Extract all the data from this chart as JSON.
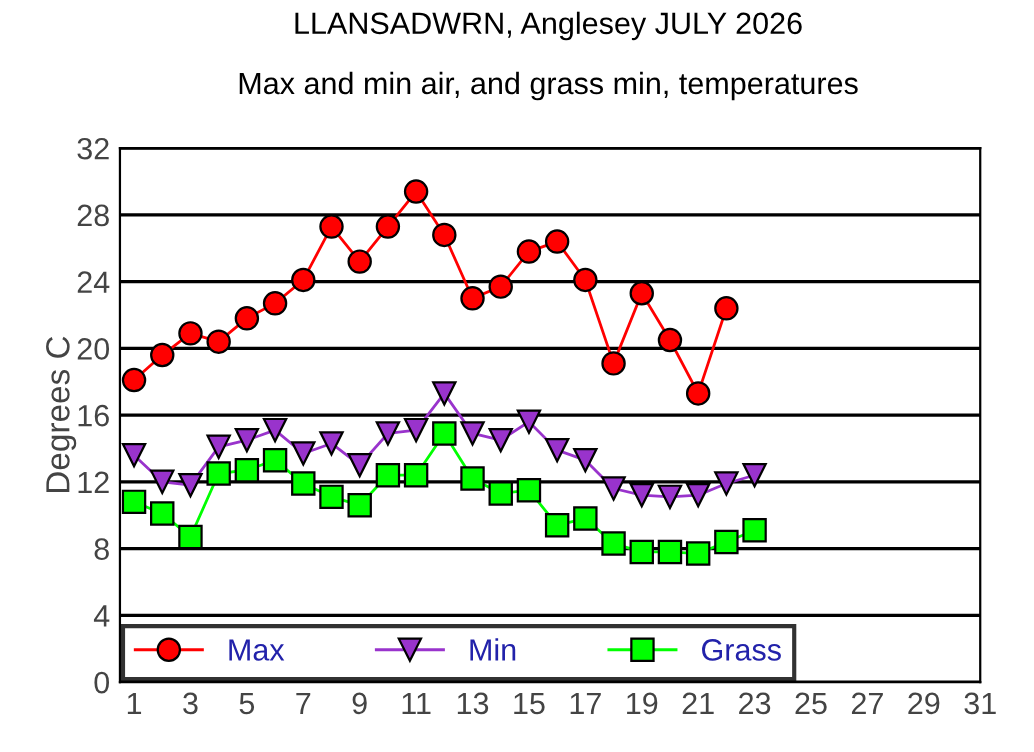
{
  "chart_data": {
    "type": "line",
    "title": "LLANSADWRN, Anglesey JULY 2026",
    "subtitle": "Max and min air, and grass min, temperatures",
    "ylabel": "Degrees C",
    "x": [
      1,
      2,
      3,
      4,
      5,
      6,
      7,
      8,
      9,
      10,
      11,
      12,
      13,
      14,
      15,
      16,
      17,
      18,
      19,
      20,
      21,
      22,
      23
    ],
    "series": [
      {
        "name": "Max",
        "color": "#ff0000",
        "marker": "circle",
        "values": [
          18.1,
          19.6,
          20.9,
          20.4,
          21.8,
          22.7,
          24.1,
          27.3,
          25.2,
          27.3,
          29.4,
          26.8,
          23.0,
          23.7,
          25.8,
          26.4,
          24.1,
          19.1,
          23.3,
          20.5,
          17.3,
          22.4,
          null
        ]
      },
      {
        "name": "Min",
        "color": "#9933cc",
        "marker": "triangle",
        "values": [
          13.6,
          12.0,
          11.8,
          14.1,
          14.5,
          15.1,
          13.7,
          14.3,
          13.0,
          14.9,
          15.1,
          17.3,
          14.9,
          14.5,
          15.6,
          13.9,
          13.3,
          11.6,
          11.2,
          11.1,
          11.2,
          11.9,
          12.4
        ]
      },
      {
        "name": "Grass",
        "color": "#00ff00",
        "marker": "square",
        "values": [
          10.8,
          10.1,
          8.7,
          12.5,
          12.7,
          13.3,
          11.9,
          11.1,
          10.6,
          12.4,
          12.4,
          14.9,
          12.2,
          11.3,
          11.5,
          9.4,
          9.8,
          8.3,
          7.8,
          7.8,
          7.7,
          8.4,
          9.1
        ]
      }
    ],
    "xlim": [
      0.5,
      31
    ],
    "xticks": [
      1,
      3,
      5,
      7,
      9,
      11,
      13,
      15,
      17,
      19,
      21,
      23,
      25,
      27,
      29,
      31
    ],
    "ylim": [
      0,
      32
    ],
    "yticks": [
      0,
      4,
      8,
      12,
      16,
      20,
      24,
      28,
      32
    ],
    "grid": "y",
    "legend": "bottom left"
  }
}
